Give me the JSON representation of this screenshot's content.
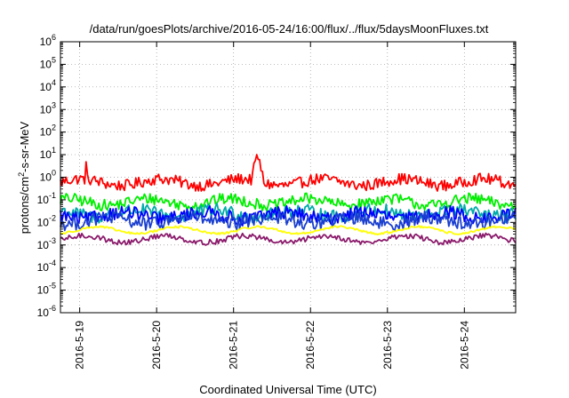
{
  "chart_data": {
    "type": "line",
    "title": "/data/run/goesPlots/archive/2016-05-24/16:00/flux/../flux/5daysMoonFluxes.txt",
    "xlabel": "Coordinated Universal Time (UTC)",
    "ylabel_parts": {
      "prefix": "protons/cm",
      "sup": "2",
      "suffix": "-s-sr-MeV"
    },
    "yscale": "log",
    "ylim": [
      1e-06,
      1000000.0
    ],
    "y_ticks": [
      {
        "base": "10",
        "exp": "-6"
      },
      {
        "base": "10",
        "exp": "-5"
      },
      {
        "base": "10",
        "exp": "-4"
      },
      {
        "base": "10",
        "exp": "-3"
      },
      {
        "base": "10",
        "exp": "-2"
      },
      {
        "base": "10",
        "exp": "-1"
      },
      {
        "base": "10",
        "exp": "0"
      },
      {
        "base": "10",
        "exp": "1"
      },
      {
        "base": "10",
        "exp": "2"
      },
      {
        "base": "10",
        "exp": "3"
      },
      {
        "base": "10",
        "exp": "4"
      },
      {
        "base": "10",
        "exp": "5"
      },
      {
        "base": "10",
        "exp": "6"
      }
    ],
    "x_ticks": [
      "2016-5-19",
      "2016-5-20",
      "2016-5-21",
      "2016-5-22",
      "2016-5-23",
      "2016-5-24"
    ],
    "xlim": [
      "2016-05-18 18:00",
      "2016-05-24 16:00"
    ],
    "grid": true,
    "series": [
      {
        "color": "#ff0000",
        "level": 0.6,
        "spread": 0.25
      },
      {
        "color": "#00ee00",
        "level": 0.08,
        "spread": 0.25
      },
      {
        "color": "#00aaaa",
        "level": 0.025,
        "spread": 0.3
      },
      {
        "color": "#0000ff",
        "level": 0.02,
        "spread": 0.3
      },
      {
        "color": "#1a3fd0",
        "level": 0.012,
        "spread": 0.3
      },
      {
        "color": "#ffff00",
        "level": 0.0045,
        "spread": 0.05
      },
      {
        "color": "#8b1a6b",
        "level": 0.0018,
        "spread": 0.12
      }
    ]
  }
}
